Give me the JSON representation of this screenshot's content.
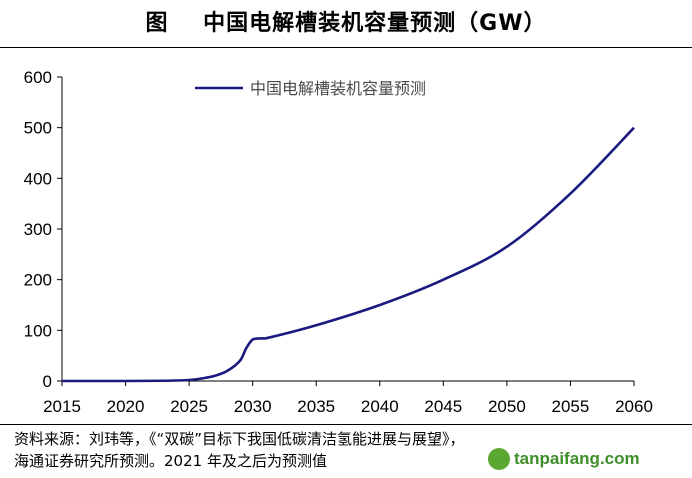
{
  "chart_data": {
    "type": "line",
    "title": "图    中国电解槽装机容量预测（GW）",
    "xlabel": "",
    "ylabel": "",
    "x": [
      2015,
      2020,
      2023,
      2025,
      2026,
      2027,
      2028,
      2029,
      2029.5,
      2030,
      2030.5,
      2031,
      2035,
      2040,
      2045,
      2050,
      2055,
      2060
    ],
    "series": [
      {
        "name": "中国电解槽装机容量预测",
        "color": "#1a1a80",
        "values": [
          0,
          0,
          0.5,
          2,
          5,
          10,
          20,
          40,
          65,
          82,
          84,
          84,
          110,
          150,
          200,
          265,
          370,
          500
        ]
      }
    ],
    "xticks": [
      "2015",
      "2020",
      "2025",
      "2030",
      "2035",
      "2040",
      "2045",
      "2050",
      "2055",
      "2060"
    ],
    "yticks": [
      "0",
      "100",
      "200",
      "300",
      "400",
      "500",
      "600"
    ],
    "xlim": [
      2015,
      2060
    ],
    "ylim": [
      0,
      600
    ],
    "grid": false,
    "legend": "top-center"
  },
  "source_note": "资料来源：刘玮等，《“双碳”目标下我国低碳清洁氢能进展与展望》，海通证券研究所预测。2021 年及之后为预测值",
  "watermark": {
    "text": "tanpaifang.com"
  }
}
